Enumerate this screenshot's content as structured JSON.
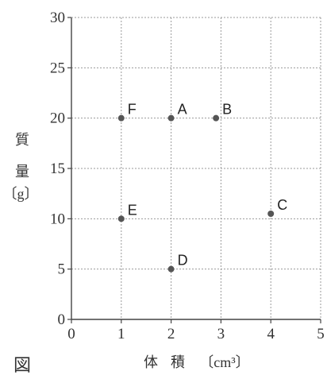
{
  "chart_data": {
    "type": "scatter",
    "xlabel": {
      "chars": [
        "体",
        "積"
      ],
      "unit": "〔cm³〕"
    },
    "ylabel": {
      "chars": [
        "質",
        "量"
      ],
      "unit": "〔g〕"
    },
    "xlim": [
      0,
      5
    ],
    "ylim": [
      0,
      30
    ],
    "xticks": [
      0,
      1,
      2,
      3,
      4,
      5
    ],
    "yticks": [
      0,
      5,
      10,
      15,
      20,
      25,
      30
    ],
    "grid": true,
    "points": [
      {
        "label": "A",
        "x": 2,
        "y": 20
      },
      {
        "label": "B",
        "x": 2.9,
        "y": 20
      },
      {
        "label": "C",
        "x": 4,
        "y": 10.5
      },
      {
        "label": "D",
        "x": 2,
        "y": 5
      },
      {
        "label": "E",
        "x": 1,
        "y": 10
      },
      {
        "label": "F",
        "x": 1,
        "y": 20
      }
    ],
    "figure_label": "図",
    "colors": {
      "point": "#555555",
      "grid": "#9a9a9a",
      "axis": "#444444"
    }
  }
}
